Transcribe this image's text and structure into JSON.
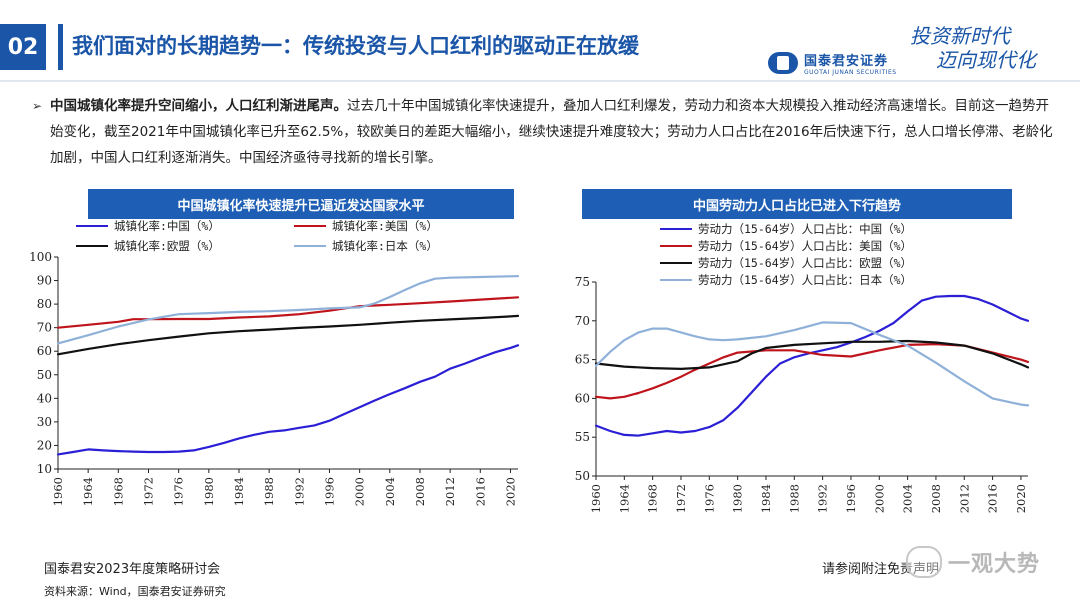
{
  "header": {
    "page_number": "02",
    "title": "我们面对的长期趋势一：传统投资与人口红利的驱动正在放缓",
    "brand_cn": "国泰君安证券",
    "brand_en": "GUOTAI JUNAN SECURITIES",
    "slogan_line1": "投资新时代",
    "slogan_line2": "迈向现代化"
  },
  "bullet": {
    "bold": "中国城镇化率提升空间缩小，人口红利渐进尾声。",
    "text": "过去几十年中国城镇化率快速提升，叠加人口红利爆发，劳动力和资本大规模投入推动经济高速增长。目前这一趋势开始变化，截至2021年中国城镇化率已升至62.5%，较欧美日的差距大幅缩小，继续快速提升难度较大；劳动力人口占比在2016年后快速下行，总人口增长停滞、老龄化加剧，中国人口红利逐渐消失。中国经济亟待寻找新的增长引擎。"
  },
  "chart_data": [
    {
      "type": "line",
      "title": "中国城镇化率快速提升已逼近发达国家水平",
      "xlabel": "",
      "ylabel": "",
      "ylim": [
        10,
        100
      ],
      "yticks": [
        10,
        20,
        30,
        40,
        50,
        60,
        70,
        80,
        90,
        100
      ],
      "x": [
        1960,
        1964,
        1968,
        1972,
        1976,
        1980,
        1984,
        1988,
        1992,
        1996,
        2000,
        2004,
        2008,
        2012,
        2016,
        2020
      ],
      "xlim": [
        1960,
        2021
      ],
      "legend_position": "top",
      "series": [
        {
          "name": "城镇化率:中国（%）",
          "color": "#2b1fd6",
          "x": [
            1960,
            1962,
            1964,
            1966,
            1968,
            1970,
            1972,
            1974,
            1976,
            1978,
            1980,
            1982,
            1984,
            1986,
            1988,
            1990,
            1992,
            1994,
            1996,
            1998,
            2000,
            2002,
            2004,
            2006,
            2008,
            2010,
            2012,
            2014,
            2016,
            2018,
            2020,
            2021
          ],
          "values": [
            16.2,
            17.2,
            18.3,
            17.9,
            17.6,
            17.4,
            17.2,
            17.2,
            17.4,
            17.9,
            19.4,
            21.1,
            23.0,
            24.5,
            25.8,
            26.4,
            27.5,
            28.5,
            30.5,
            33.4,
            36.2,
            39.1,
            41.8,
            44.3,
            47.0,
            49.2,
            52.6,
            54.8,
            57.3,
            59.6,
            61.4,
            62.5
          ]
        },
        {
          "name": "城镇化率:美国（%）",
          "color": "#c0141c",
          "x": [
            1960,
            1964,
            1968,
            1970,
            1972,
            1976,
            1980,
            1984,
            1988,
            1992,
            1996,
            2000,
            2004,
            2008,
            2012,
            2016,
            2020,
            2021
          ],
          "values": [
            70.0,
            71.2,
            72.5,
            73.6,
            73.6,
            73.7,
            73.7,
            74.3,
            74.8,
            75.7,
            77.2,
            79.1,
            79.7,
            80.4,
            81.1,
            81.9,
            82.7,
            82.9
          ]
        },
        {
          "name": "城镇化率:欧盟（%）",
          "color": "#111111",
          "x": [
            1960,
            1964,
            1968,
            1972,
            1976,
            1980,
            1984,
            1988,
            1992,
            1996,
            2000,
            2004,
            2008,
            2012,
            2016,
            2020,
            2021
          ],
          "values": [
            58.7,
            61.0,
            63.0,
            64.7,
            66.2,
            67.6,
            68.5,
            69.2,
            69.9,
            70.5,
            71.2,
            72.1,
            72.9,
            73.5,
            74.1,
            74.8,
            75.0
          ]
        },
        {
          "name": "城镇化率:日本（%）",
          "color": "#8fb1d9",
          "x": [
            1960,
            1964,
            1968,
            1972,
            1976,
            1980,
            1984,
            1988,
            1992,
            1996,
            2000,
            2002,
            2004,
            2006,
            2008,
            2010,
            2012,
            2016,
            2020,
            2021
          ],
          "values": [
            63.3,
            66.8,
            70.5,
            73.5,
            75.7,
            76.2,
            76.7,
            77.0,
            77.5,
            78.2,
            78.6,
            80.3,
            83.0,
            86.0,
            88.8,
            90.8,
            91.2,
            91.5,
            91.8,
            91.9
          ]
        }
      ]
    },
    {
      "type": "line",
      "title": "中国劳动力人口占比已进入下行趋势",
      "xlabel": "",
      "ylabel": "",
      "ylim": [
        50,
        75
      ],
      "yticks": [
        50,
        55,
        60,
        65,
        70,
        75
      ],
      "x": [
        1960,
        1964,
        1968,
        1972,
        1976,
        1980,
        1984,
        1988,
        1992,
        1996,
        2000,
        2004,
        2008,
        2012,
        2016,
        2020
      ],
      "xlim": [
        1960,
        2021
      ],
      "legend_position": "top",
      "series": [
        {
          "name": "劳动力（15-64岁）人口占比：中国（%）",
          "color": "#2b1fd6",
          "x": [
            1960,
            1962,
            1964,
            1966,
            1968,
            1970,
            1972,
            1974,
            1976,
            1978,
            1980,
            1982,
            1984,
            1986,
            1988,
            1990,
            1992,
            1994,
            1996,
            1998,
            2000,
            2002,
            2004,
            2006,
            2008,
            2010,
            2012,
            2014,
            2016,
            2018,
            2020,
            2021
          ],
          "values": [
            56.5,
            55.8,
            55.3,
            55.2,
            55.5,
            55.8,
            55.6,
            55.8,
            56.3,
            57.2,
            58.8,
            60.8,
            62.8,
            64.5,
            65.3,
            65.8,
            66.2,
            66.6,
            67.2,
            67.9,
            68.7,
            69.7,
            71.2,
            72.6,
            73.1,
            73.2,
            73.2,
            72.8,
            72.1,
            71.2,
            70.3,
            70.0
          ]
        },
        {
          "name": "劳动力（15-64岁）人口占比：美国（%）",
          "color": "#c0141c",
          "x": [
            1960,
            1962,
            1964,
            1966,
            1968,
            1970,
            1972,
            1974,
            1976,
            1978,
            1980,
            1984,
            1988,
            1992,
            1996,
            2000,
            2004,
            2008,
            2012,
            2016,
            2020,
            2021
          ],
          "values": [
            60.2,
            60.0,
            60.2,
            60.7,
            61.3,
            62.0,
            62.8,
            63.7,
            64.5,
            65.3,
            65.9,
            66.2,
            66.2,
            65.6,
            65.4,
            66.2,
            66.9,
            67.0,
            66.8,
            65.9,
            65.0,
            64.7
          ]
        },
        {
          "name": "劳动力（15-64岁）人口占比：欧盟（%）",
          "color": "#111111",
          "x": [
            1960,
            1964,
            1968,
            1972,
            1976,
            1980,
            1982,
            1984,
            1988,
            1992,
            1996,
            2000,
            2004,
            2008,
            2012,
            2016,
            2020,
            2021
          ],
          "values": [
            64.5,
            64.1,
            63.9,
            63.8,
            64.0,
            64.8,
            65.8,
            66.5,
            66.9,
            67.1,
            67.3,
            67.3,
            67.4,
            67.2,
            66.8,
            65.8,
            64.4,
            64.0
          ]
        },
        {
          "name": "劳动力（15-64岁）人口占比：日本（%）",
          "color": "#8fb1d9",
          "x": [
            1960,
            1962,
            1964,
            1966,
            1968,
            1970,
            1972,
            1974,
            1976,
            1978,
            1980,
            1984,
            1988,
            1992,
            1996,
            2000,
            2004,
            2008,
            2012,
            2016,
            2020,
            2021
          ],
          "values": [
            64.2,
            66.0,
            67.5,
            68.5,
            69.0,
            69.0,
            68.5,
            68.0,
            67.6,
            67.5,
            67.6,
            68.0,
            68.8,
            69.8,
            69.7,
            68.2,
            66.8,
            64.6,
            62.2,
            60.0,
            59.2,
            59.1
          ]
        }
      ]
    }
  ],
  "footer": {
    "left": "国泰君安2023年度策略研讨会",
    "source": "资料来源：Wind，国泰君安证券研究",
    "right": "请参阅附注免责声明",
    "watermark": "一观大势"
  }
}
